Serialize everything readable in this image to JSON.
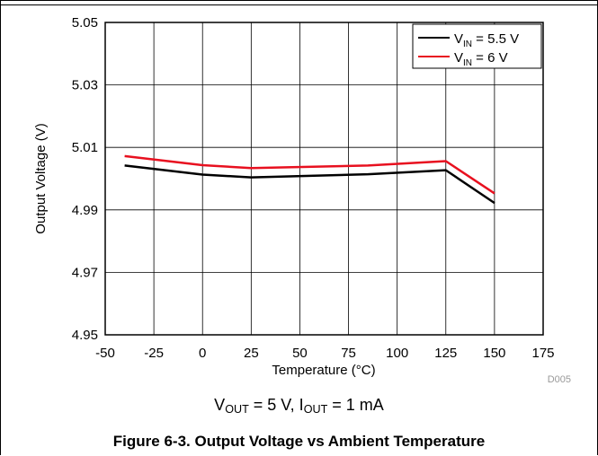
{
  "chart_data": {
    "type": "line",
    "x": [
      -40,
      0,
      25,
      85,
      125,
      150
    ],
    "series": [
      {
        "name_main": "V",
        "name_sub": "IN",
        "name_rest": " = 5.5 V",
        "color": "#000000",
        "values": [
          5.0042,
          5.0013,
          5.0004,
          5.0014,
          5.0027,
          4.9922
        ]
      },
      {
        "name_main": "V",
        "name_sub": "IN",
        "name_rest": " = 6 V",
        "color": "#e8101f",
        "values": [
          5.0072,
          5.0043,
          5.0034,
          5.0042,
          5.0056,
          4.9953
        ]
      }
    ],
    "xlabel": "Temperature (°C)",
    "ylabel": "Output Voltage (V)",
    "xlim": [
      -50,
      175
    ],
    "ylim": [
      4.95,
      5.05
    ],
    "xticks": [
      -50,
      -25,
      0,
      25,
      50,
      75,
      100,
      125,
      150,
      175
    ],
    "yticks": [
      "4.95",
      "4.97",
      "4.99",
      "5.01",
      "5.03",
      "5.05"
    ],
    "grid": true,
    "legend_position": "top-right",
    "code_label": "D005"
  },
  "conditions": {
    "v_main": "V",
    "v_sub": "OUT",
    "v_rest": " = 5 V, ",
    "i_main": "I",
    "i_sub": "OUT",
    "i_rest": " = 1 mA"
  },
  "caption": "Figure 6-3. Output Voltage vs Ambient Temperature"
}
